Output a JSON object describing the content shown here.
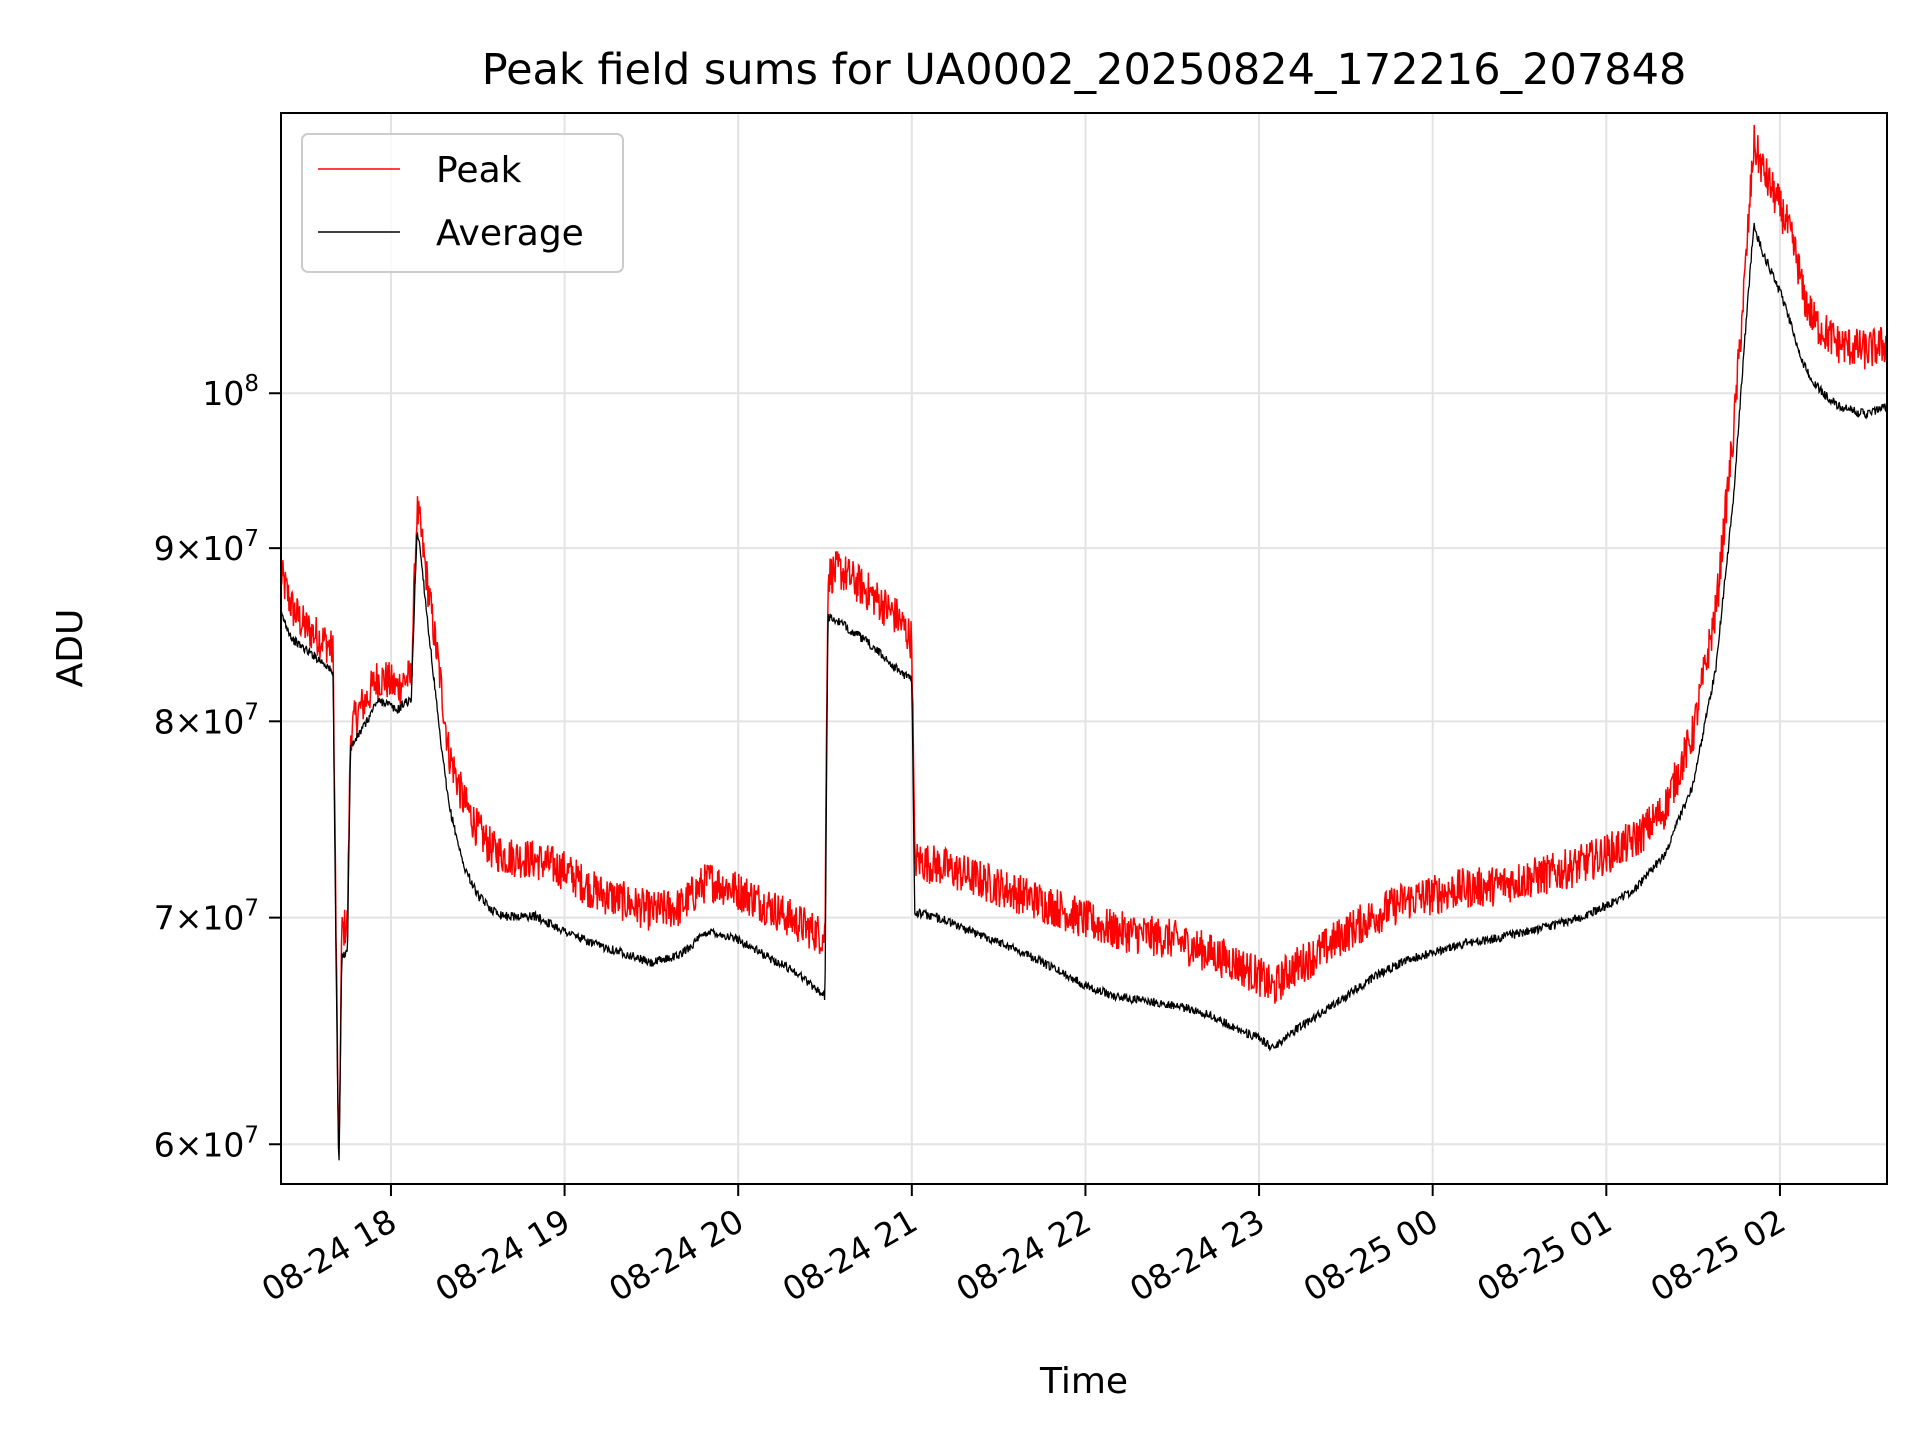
{
  "chart_data": {
    "type": "line",
    "title": "Peak field sums for UA0002_20250824_172216_207848",
    "xlabel": "Time",
    "ylabel": "ADU",
    "x_range": [
      "2025-08-24 17:22",
      "2025-08-25 02:37"
    ],
    "ylim": [
      58400000,
      121000000
    ],
    "y_scale": "log",
    "x_ticks": [
      {
        "t": "2025-08-24 18:00",
        "label": "08-24 18"
      },
      {
        "t": "2025-08-24 19:00",
        "label": "08-24 19"
      },
      {
        "t": "2025-08-24 20:00",
        "label": "08-24 20"
      },
      {
        "t": "2025-08-24 21:00",
        "label": "08-24 21"
      },
      {
        "t": "2025-08-24 22:00",
        "label": "08-24 22"
      },
      {
        "t": "2025-08-24 23:00",
        "label": "08-24 23"
      },
      {
        "t": "2025-08-25 00:00",
        "label": "08-25 00"
      },
      {
        "t": "2025-08-25 01:00",
        "label": "08-25 01"
      },
      {
        "t": "2025-08-25 02:00",
        "label": "08-25 02"
      }
    ],
    "y_ticks": [
      {
        "value": 60000000,
        "mantissa": "6",
        "exp": "7"
      },
      {
        "value": 70000000,
        "mantissa": "7",
        "exp": "7"
      },
      {
        "value": 80000000,
        "mantissa": "8",
        "exp": "7"
      },
      {
        "value": 90000000,
        "mantissa": "9",
        "exp": "7"
      },
      {
        "value": 100000000,
        "mantissa": "",
        "exp": "8"
      }
    ],
    "grid": true,
    "legend_position": "top-left",
    "series": [
      {
        "name": "Peak",
        "color": "#ff0000",
        "noise": 0.028,
        "points": [
          [
            "2025-08-24 17:22",
            88000000
          ],
          [
            "2025-08-24 17:26",
            86000000
          ],
          [
            "2025-08-24 17:30",
            85000000
          ],
          [
            "2025-08-24 17:34",
            84500000
          ],
          [
            "2025-08-24 17:38",
            84000000
          ],
          [
            "2025-08-24 17:40",
            83500000
          ],
          [
            "2025-08-24 17:41",
            69000000
          ],
          [
            "2025-08-24 17:42",
            58500000
          ],
          [
            "2025-08-24 17:43",
            69000000
          ],
          [
            "2025-08-24 17:45",
            69500000
          ],
          [
            "2025-08-24 17:46",
            79000000
          ],
          [
            "2025-08-24 17:48",
            80000000
          ],
          [
            "2025-08-24 17:50",
            80500000
          ],
          [
            "2025-08-24 17:52",
            81000000
          ],
          [
            "2025-08-24 17:55",
            82000000
          ],
          [
            "2025-08-24 17:58",
            82000000
          ],
          [
            "2025-08-24 18:02",
            81500000
          ],
          [
            "2025-08-24 18:05",
            82000000
          ],
          [
            "2025-08-24 18:07",
            82000000
          ],
          [
            "2025-08-24 18:09",
            92000000
          ],
          [
            "2025-08-24 18:10",
            91000000
          ],
          [
            "2025-08-24 18:13",
            87000000
          ],
          [
            "2025-08-24 18:17",
            82000000
          ],
          [
            "2025-08-24 18:20",
            78000000
          ],
          [
            "2025-08-24 18:25",
            75500000
          ],
          [
            "2025-08-24 18:30",
            74000000
          ],
          [
            "2025-08-24 18:35",
            73000000
          ],
          [
            "2025-08-24 18:40",
            72700000
          ],
          [
            "2025-08-24 18:50",
            72500000
          ],
          [
            "2025-08-24 19:00",
            72000000
          ],
          [
            "2025-08-24 19:10",
            71000000
          ],
          [
            "2025-08-24 19:20",
            70500000
          ],
          [
            "2025-08-24 19:30",
            70000000
          ],
          [
            "2025-08-24 19:40",
            70200000
          ],
          [
            "2025-08-24 19:47",
            71200000
          ],
          [
            "2025-08-24 19:50",
            71500000
          ],
          [
            "2025-08-24 20:00",
            71000000
          ],
          [
            "2025-08-24 20:10",
            70300000
          ],
          [
            "2025-08-24 20:20",
            69500000
          ],
          [
            "2025-08-24 20:30",
            68800000
          ],
          [
            "2025-08-24 20:31",
            88000000
          ],
          [
            "2025-08-24 20:35",
            88300000
          ],
          [
            "2025-08-24 20:45",
            87000000
          ],
          [
            "2025-08-24 20:55",
            85500000
          ],
          [
            "2025-08-24 21:00",
            84200000
          ],
          [
            "2025-08-24 21:01",
            72500000
          ],
          [
            "2025-08-24 21:10",
            72200000
          ],
          [
            "2025-08-24 21:20",
            71700000
          ],
          [
            "2025-08-24 21:30",
            71200000
          ],
          [
            "2025-08-24 21:40",
            70700000
          ],
          [
            "2025-08-24 21:50",
            70200000
          ],
          [
            "2025-08-24 22:00",
            69600000
          ],
          [
            "2025-08-24 22:10",
            69100000
          ],
          [
            "2025-08-24 22:20",
            68900000
          ],
          [
            "2025-08-24 22:30",
            68700000
          ],
          [
            "2025-08-24 22:40",
            68200000
          ],
          [
            "2025-08-24 22:50",
            67700000
          ],
          [
            "2025-08-24 23:00",
            67000000
          ],
          [
            "2025-08-24 23:05",
            66400000
          ],
          [
            "2025-08-24 23:10",
            67200000
          ],
          [
            "2025-08-24 23:20",
            68000000
          ],
          [
            "2025-08-24 23:30",
            69000000
          ],
          [
            "2025-08-24 23:40",
            69800000
          ],
          [
            "2025-08-24 23:50",
            70500000
          ],
          [
            "2025-08-25 00:00",
            70800000
          ],
          [
            "2025-08-25 00:10",
            71100000
          ],
          [
            "2025-08-25 00:20",
            71200000
          ],
          [
            "2025-08-25 00:30",
            71500000
          ],
          [
            "2025-08-25 00:40",
            71800000
          ],
          [
            "2025-08-25 00:50",
            72200000
          ],
          [
            "2025-08-25 01:00",
            72800000
          ],
          [
            "2025-08-25 01:10",
            73500000
          ],
          [
            "2025-08-25 01:20",
            75000000
          ],
          [
            "2025-08-25 01:30",
            79000000
          ],
          [
            "2025-08-25 01:38",
            86000000
          ],
          [
            "2025-08-25 01:44",
            97000000
          ],
          [
            "2025-08-25 01:48",
            108000000
          ],
          [
            "2025-08-25 01:51",
            118000000
          ],
          [
            "2025-08-25 01:54",
            116000000
          ],
          [
            "2025-08-25 01:58",
            114000000
          ],
          [
            "2025-08-25 02:02",
            112000000
          ],
          [
            "2025-08-25 02:06",
            109000000
          ],
          [
            "2025-08-25 02:08",
            106500000
          ],
          [
            "2025-08-25 02:12",
            104500000
          ],
          [
            "2025-08-25 02:20",
            103000000
          ],
          [
            "2025-08-25 02:30",
            102500000
          ],
          [
            "2025-08-25 02:37",
            103000000
          ]
        ]
      },
      {
        "name": "Average",
        "color": "#000000",
        "noise": 0.006,
        "points": [
          [
            "2025-08-24 17:22",
            86000000
          ],
          [
            "2025-08-24 17:26",
            84500000
          ],
          [
            "2025-08-24 17:30",
            84000000
          ],
          [
            "2025-08-24 17:34",
            83500000
          ],
          [
            "2025-08-24 17:38",
            83000000
          ],
          [
            "2025-08-24 17:40",
            82500000
          ],
          [
            "2025-08-24 17:41",
            68000000
          ],
          [
            "2025-08-24 17:42",
            58500000
          ],
          [
            "2025-08-24 17:43",
            68000000
          ],
          [
            "2025-08-24 17:45",
            68500000
          ],
          [
            "2025-08-24 17:46",
            78500000
          ],
          [
            "2025-08-24 17:48",
            79000000
          ],
          [
            "2025-08-24 17:50",
            79500000
          ],
          [
            "2025-08-24 17:52",
            80000000
          ],
          [
            "2025-08-24 17:55",
            81000000
          ],
          [
            "2025-08-24 17:58",
            81000000
          ],
          [
            "2025-08-24 18:02",
            80500000
          ],
          [
            "2025-08-24 18:05",
            81000000
          ],
          [
            "2025-08-24 18:07",
            81000000
          ],
          [
            "2025-08-24 18:09",
            91000000
          ],
          [
            "2025-08-24 18:10",
            90000000
          ],
          [
            "2025-08-24 18:13",
            85000000
          ],
          [
            "2025-08-24 18:17",
            79000000
          ],
          [
            "2025-08-24 18:20",
            75500000
          ],
          [
            "2025-08-24 18:25",
            72500000
          ],
          [
            "2025-08-24 18:30",
            71000000
          ],
          [
            "2025-08-24 18:35",
            70300000
          ],
          [
            "2025-08-24 18:40",
            70000000
          ],
          [
            "2025-08-24 18:50",
            70000000
          ],
          [
            "2025-08-24 19:00",
            69300000
          ],
          [
            "2025-08-24 19:10",
            68700000
          ],
          [
            "2025-08-24 19:20",
            68300000
          ],
          [
            "2025-08-24 19:30",
            67800000
          ],
          [
            "2025-08-24 19:40",
            68200000
          ],
          [
            "2025-08-24 19:47",
            69000000
          ],
          [
            "2025-08-24 19:50",
            69300000
          ],
          [
            "2025-08-24 20:00",
            68900000
          ],
          [
            "2025-08-24 20:10",
            68100000
          ],
          [
            "2025-08-24 20:20",
            67400000
          ],
          [
            "2025-08-24 20:30",
            66300000
          ],
          [
            "2025-08-24 20:31",
            85800000
          ],
          [
            "2025-08-24 20:35",
            85500000
          ],
          [
            "2025-08-24 20:45",
            84300000
          ],
          [
            "2025-08-24 20:55",
            82800000
          ],
          [
            "2025-08-24 21:00",
            82200000
          ],
          [
            "2025-08-24 21:01",
            70200000
          ],
          [
            "2025-08-24 21:10",
            69900000
          ],
          [
            "2025-08-24 21:20",
            69300000
          ],
          [
            "2025-08-24 21:30",
            68800000
          ],
          [
            "2025-08-24 21:40",
            68200000
          ],
          [
            "2025-08-24 21:50",
            67500000
          ],
          [
            "2025-08-24 22:00",
            66800000
          ],
          [
            "2025-08-24 22:10",
            66300000
          ],
          [
            "2025-08-24 22:20",
            66100000
          ],
          [
            "2025-08-24 22:30",
            65900000
          ],
          [
            "2025-08-24 22:40",
            65600000
          ],
          [
            "2025-08-24 22:50",
            65000000
          ],
          [
            "2025-08-24 23:00",
            64400000
          ],
          [
            "2025-08-24 23:05",
            64000000
          ],
          [
            "2025-08-24 23:10",
            64600000
          ],
          [
            "2025-08-24 23:20",
            65400000
          ],
          [
            "2025-08-24 23:30",
            66300000
          ],
          [
            "2025-08-24 23:40",
            67200000
          ],
          [
            "2025-08-24 23:50",
            67900000
          ],
          [
            "2025-08-25 00:00",
            68300000
          ],
          [
            "2025-08-25 00:10",
            68700000
          ],
          [
            "2025-08-25 00:20",
            68900000
          ],
          [
            "2025-08-25 00:30",
            69200000
          ],
          [
            "2025-08-25 00:40",
            69500000
          ],
          [
            "2025-08-25 00:50",
            69900000
          ],
          [
            "2025-08-25 01:00",
            70500000
          ],
          [
            "2025-08-25 01:10",
            71300000
          ],
          [
            "2025-08-25 01:20",
            73000000
          ],
          [
            "2025-08-25 01:30",
            76500000
          ],
          [
            "2025-08-25 01:38",
            83000000
          ],
          [
            "2025-08-25 01:44",
            93000000
          ],
          [
            "2025-08-25 01:48",
            104000000
          ],
          [
            "2025-08-25 01:51",
            112000000
          ],
          [
            "2025-08-25 01:54",
            110000000
          ],
          [
            "2025-08-25 01:58",
            108000000
          ],
          [
            "2025-08-25 02:02",
            106000000
          ],
          [
            "2025-08-25 02:06",
            103000000
          ],
          [
            "2025-08-25 02:08",
            102000000
          ],
          [
            "2025-08-25 02:12",
            100500000
          ],
          [
            "2025-08-25 02:20",
            99000000
          ],
          [
            "2025-08-25 02:30",
            98500000
          ],
          [
            "2025-08-25 02:37",
            99000000
          ]
        ]
      }
    ]
  }
}
